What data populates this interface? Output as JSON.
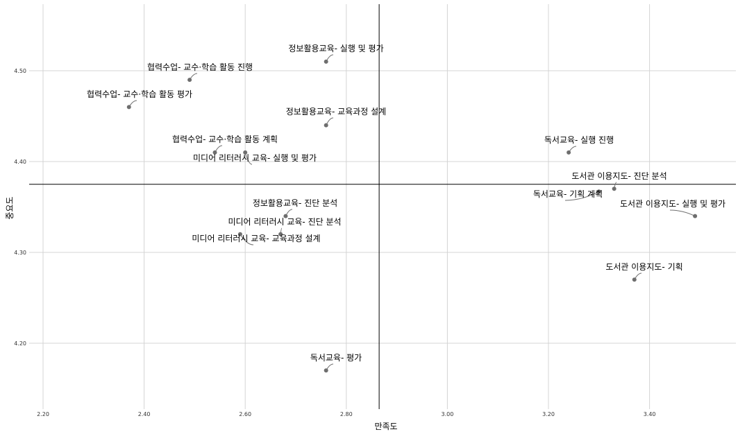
{
  "chart_data": {
    "type": "scatter",
    "title": "",
    "xlabel": "만족도",
    "ylabel": "중요도",
    "xlim": [
      2.2,
      3.57
    ],
    "ylim": [
      4.127,
      4.57
    ],
    "x_ticks": [
      "2.20",
      "2.40",
      "2.60",
      "2.80",
      "3.00",
      "3.20",
      "3.40"
    ],
    "y_ticks": [
      "4.20",
      "4.30",
      "4.40",
      "4.50"
    ],
    "reference_lines": {
      "x": 2.865,
      "y": 4.375
    },
    "grid": true,
    "colors": {
      "point": "#6e6e6e",
      "grid": "#d4d4d4",
      "reference": "#000000"
    },
    "points": [
      {
        "label": "정보활용교육- 실행 및 평가",
        "x": 2.76,
        "y": 4.51
      },
      {
        "label": "협력수업- 교수·학습 활동 진행",
        "x": 2.49,
        "y": 4.49
      },
      {
        "label": "협력수업- 교수·학습 활동 평가",
        "x": 2.37,
        "y": 4.46
      },
      {
        "label": "정보활용교육- 교육과정 설계",
        "x": 2.76,
        "y": 4.44
      },
      {
        "label": "협력수업- 교수·학습 활동 계획",
        "x": 2.54,
        "y": 4.41
      },
      {
        "label": "미디어 리터러시 교육- 실행 및 평가",
        "x": 2.6,
        "y": 4.41
      },
      {
        "label": "독서교육- 실행 진행",
        "x": 3.24,
        "y": 4.41
      },
      {
        "label": "도서관 이용지도- 진단 분석",
        "x": 3.33,
        "y": 4.37
      },
      {
        "label": "독서교육- 기획 계획",
        "x": 3.3,
        "y": 4.367
      },
      {
        "label": "도서관 이용지도- 실행 및 평가",
        "x": 3.49,
        "y": 4.34
      },
      {
        "label": "정보활용교육- 진단 분석",
        "x": 2.68,
        "y": 4.34
      },
      {
        "label": "미디어 리터러시 교육- 진단 분석",
        "x": 2.67,
        "y": 4.32
      },
      {
        "label": "미디어 리터러시 교육- 교육과정 설계",
        "x": 2.59,
        "y": 4.32
      },
      {
        "label": "도서관 이용지도- 기획",
        "x": 3.37,
        "y": 4.27
      },
      {
        "label": "독서교육- 평가",
        "x": 2.76,
        "y": 4.17
      }
    ]
  }
}
